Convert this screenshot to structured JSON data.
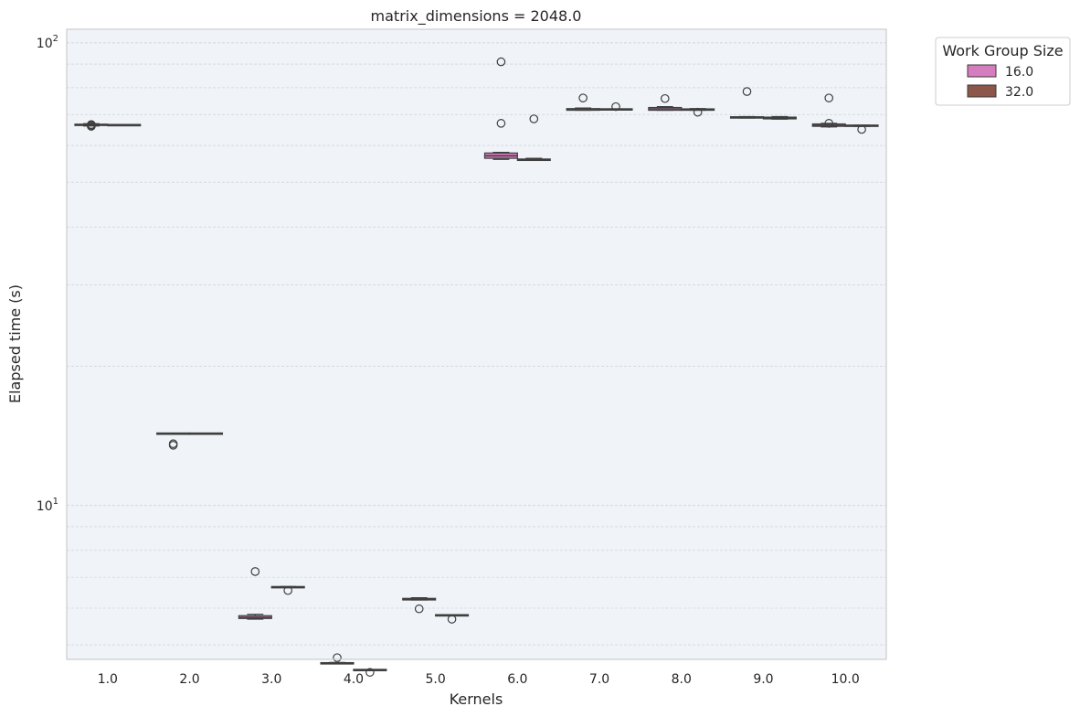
{
  "chart_data": {
    "type": "box",
    "title": "matrix_dimensions = 2048.0",
    "xlabel": "Kernels",
    "ylabel": "Elapsed time (s)",
    "yscale": "log",
    "ylim": [
      4.65,
      107
    ],
    "ytick_labels": [
      {
        "value": 10,
        "base": "10",
        "exp": "1"
      },
      {
        "value": 100,
        "base": "10",
        "exp": "2"
      }
    ],
    "categories": [
      "1.0",
      "2.0",
      "3.0",
      "4.0",
      "5.0",
      "6.0",
      "7.0",
      "8.0",
      "9.0",
      "10.0"
    ],
    "grid": true,
    "legend": {
      "title": "Work Group Size",
      "position": "outside-top-right"
    },
    "series": [
      {
        "name": "16.0",
        "color": "#d57dbe",
        "boxes": [
          {
            "category": "1.0",
            "whislo": 66.1,
            "q1": 66.3,
            "med": 66.5,
            "q3": 66.7,
            "whishi": 66.9,
            "fliers": [
              66.0,
              66.3,
              66.6
            ]
          },
          {
            "category": "2.0",
            "whislo": 14.3,
            "q1": 14.3,
            "med": 14.3,
            "q3": 14.3,
            "whishi": 14.3,
            "fliers": [
              13.5,
              13.6
            ]
          },
          {
            "category": "3.0",
            "whislo": 5.68,
            "q1": 5.7,
            "med": 5.73,
            "q3": 5.78,
            "whishi": 5.82,
            "fliers": [
              7.2
            ]
          },
          {
            "category": "4.0",
            "whislo": 4.55,
            "q1": 4.55,
            "med": 4.56,
            "q3": 4.57,
            "whishi": 4.58,
            "fliers": [
              4.69
            ]
          },
          {
            "category": "5.0",
            "whislo": 6.25,
            "q1": 6.25,
            "med": 6.27,
            "q3": 6.3,
            "whishi": 6.32,
            "fliers": [
              5.98
            ]
          },
          {
            "category": "6.0",
            "whislo": 56.0,
            "q1": 56.3,
            "med": 57.0,
            "q3": 57.8,
            "whishi": 58.0,
            "fliers": [
              67.0,
              91.0
            ]
          },
          {
            "category": "7.0",
            "whislo": 71.5,
            "q1": 71.5,
            "med": 71.7,
            "q3": 72.1,
            "whishi": 72.3,
            "fliers": [
              76.0
            ]
          },
          {
            "category": "8.0",
            "whislo": 71.5,
            "q1": 71.5,
            "med": 72.0,
            "q3": 72.5,
            "whishi": 72.8,
            "fliers": [
              75.8
            ]
          },
          {
            "category": "9.0",
            "whislo": 68.8,
            "q1": 68.8,
            "med": 69.0,
            "q3": 69.2,
            "whishi": 69.3,
            "fliers": [
              78.5
            ]
          },
          {
            "category": "10.0",
            "whislo": 65.8,
            "q1": 66.0,
            "med": 66.4,
            "q3": 66.8,
            "whishi": 67.0,
            "fliers": [
              67.0,
              76.0
            ]
          }
        ]
      },
      {
        "name": "32.0",
        "color": "#8c564b",
        "boxes": [
          {
            "category": "1.0",
            "whislo": 66.3,
            "q1": 66.3,
            "med": 66.4,
            "q3": 66.5,
            "whishi": 66.5,
            "fliers": []
          },
          {
            "category": "2.0",
            "whislo": 14.3,
            "q1": 14.3,
            "med": 14.3,
            "q3": 14.3,
            "whishi": 14.3,
            "fliers": []
          },
          {
            "category": "3.0",
            "whislo": 6.65,
            "q1": 6.65,
            "med": 6.66,
            "q3": 6.67,
            "whishi": 6.68,
            "fliers": [
              6.55
            ]
          },
          {
            "category": "4.0",
            "whislo": 4.4,
            "q1": 4.4,
            "med": 4.41,
            "q3": 4.42,
            "whishi": 4.42,
            "fliers": [
              4.36
            ]
          },
          {
            "category": "5.0",
            "whislo": 5.78,
            "q1": 5.78,
            "med": 5.79,
            "q3": 5.8,
            "whishi": 5.81,
            "fliers": [
              5.68
            ]
          },
          {
            "category": "6.0",
            "whislo": 55.7,
            "q1": 55.7,
            "med": 55.9,
            "q3": 56.1,
            "whishi": 56.3,
            "fliers": [
              68.5
            ]
          },
          {
            "category": "7.0",
            "whislo": 71.6,
            "q1": 71.6,
            "med": 71.8,
            "q3": 72.0,
            "whishi": 72.0,
            "fliers": [
              72.8
            ]
          },
          {
            "category": "8.0",
            "whislo": 71.5,
            "q1": 71.5,
            "med": 71.8,
            "q3": 72.0,
            "whishi": 72.1,
            "fliers": [
              70.8
            ]
          },
          {
            "category": "9.0",
            "whislo": 68.4,
            "q1": 68.5,
            "med": 68.8,
            "q3": 69.1,
            "whishi": 69.3,
            "fliers": []
          },
          {
            "category": "10.0",
            "whislo": 66.0,
            "q1": 66.0,
            "med": 66.2,
            "q3": 66.4,
            "whishi": 66.4,
            "fliers": [
              65.0
            ]
          }
        ]
      }
    ]
  }
}
